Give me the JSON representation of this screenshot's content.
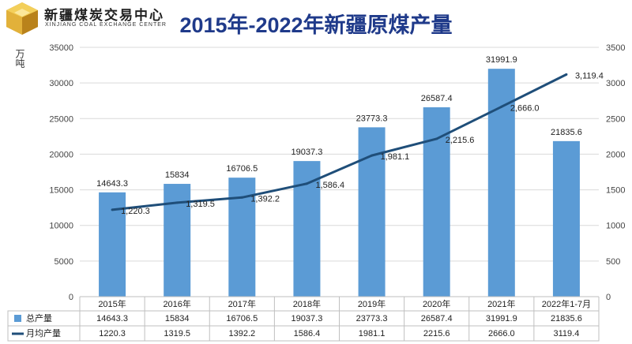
{
  "logo": {
    "name_cn": "新疆煤炭交易中心",
    "name_en": "XINJIANG COAL EXCHANGE CENTER"
  },
  "colors": {
    "bar": "#5b9bd5",
    "line": "#1f4e79",
    "title": "#1f3a8a"
  },
  "chart_data": {
    "type": "bar",
    "title": "2015年-2022年新疆原煤产量",
    "ylabel": "万吨",
    "categories": [
      "2015年",
      "2016年",
      "2017年",
      "2018年",
      "2019年",
      "2020年",
      "2021年",
      "2022年1-7月"
    ],
    "ylim": [
      0,
      35000
    ],
    "y2lim": [
      0,
      3500
    ],
    "yticks": [
      "0",
      "5000",
      "10000",
      "15000",
      "20000",
      "25000",
      "30000",
      "35000"
    ],
    "y2ticks": [
      "0",
      "500",
      "1000",
      "1500",
      "2000",
      "2500",
      "3000",
      "3500"
    ],
    "grid": true,
    "legend": "bottom-table",
    "series": [
      {
        "name": "总产量",
        "type": "bar",
        "axis": "left",
        "values": [
          14643.3,
          15834,
          16706.5,
          19037.3,
          23773.3,
          26587.4,
          31991.9,
          21835.6
        ],
        "labels": [
          "14643.3",
          "15834",
          "16706.5",
          "19037.3",
          "23773.3",
          "26587.4",
          "31991.9",
          "21835.6"
        ],
        "table": [
          "14643.3",
          "15834",
          "16706.5",
          "19037.3",
          "23773.3",
          "26587.4",
          "31991.9",
          "21835.6"
        ]
      },
      {
        "name": "月均产量",
        "type": "line",
        "axis": "right",
        "values": [
          1220.3,
          1319.5,
          1392.2,
          1586.4,
          1981.1,
          2215.6,
          2666.0,
          3119.4
        ],
        "labels": [
          "1,220.3",
          "1,319.5",
          "1,392.2",
          "1,586.4",
          "1,981.1",
          "2,215.6",
          "2,666.0",
          "3,119.4"
        ],
        "table": [
          "1220.3",
          "1319.5",
          "1392.2",
          "1586.4",
          "1981.1",
          "2215.6",
          "2666.0",
          "3119.4"
        ]
      }
    ]
  }
}
